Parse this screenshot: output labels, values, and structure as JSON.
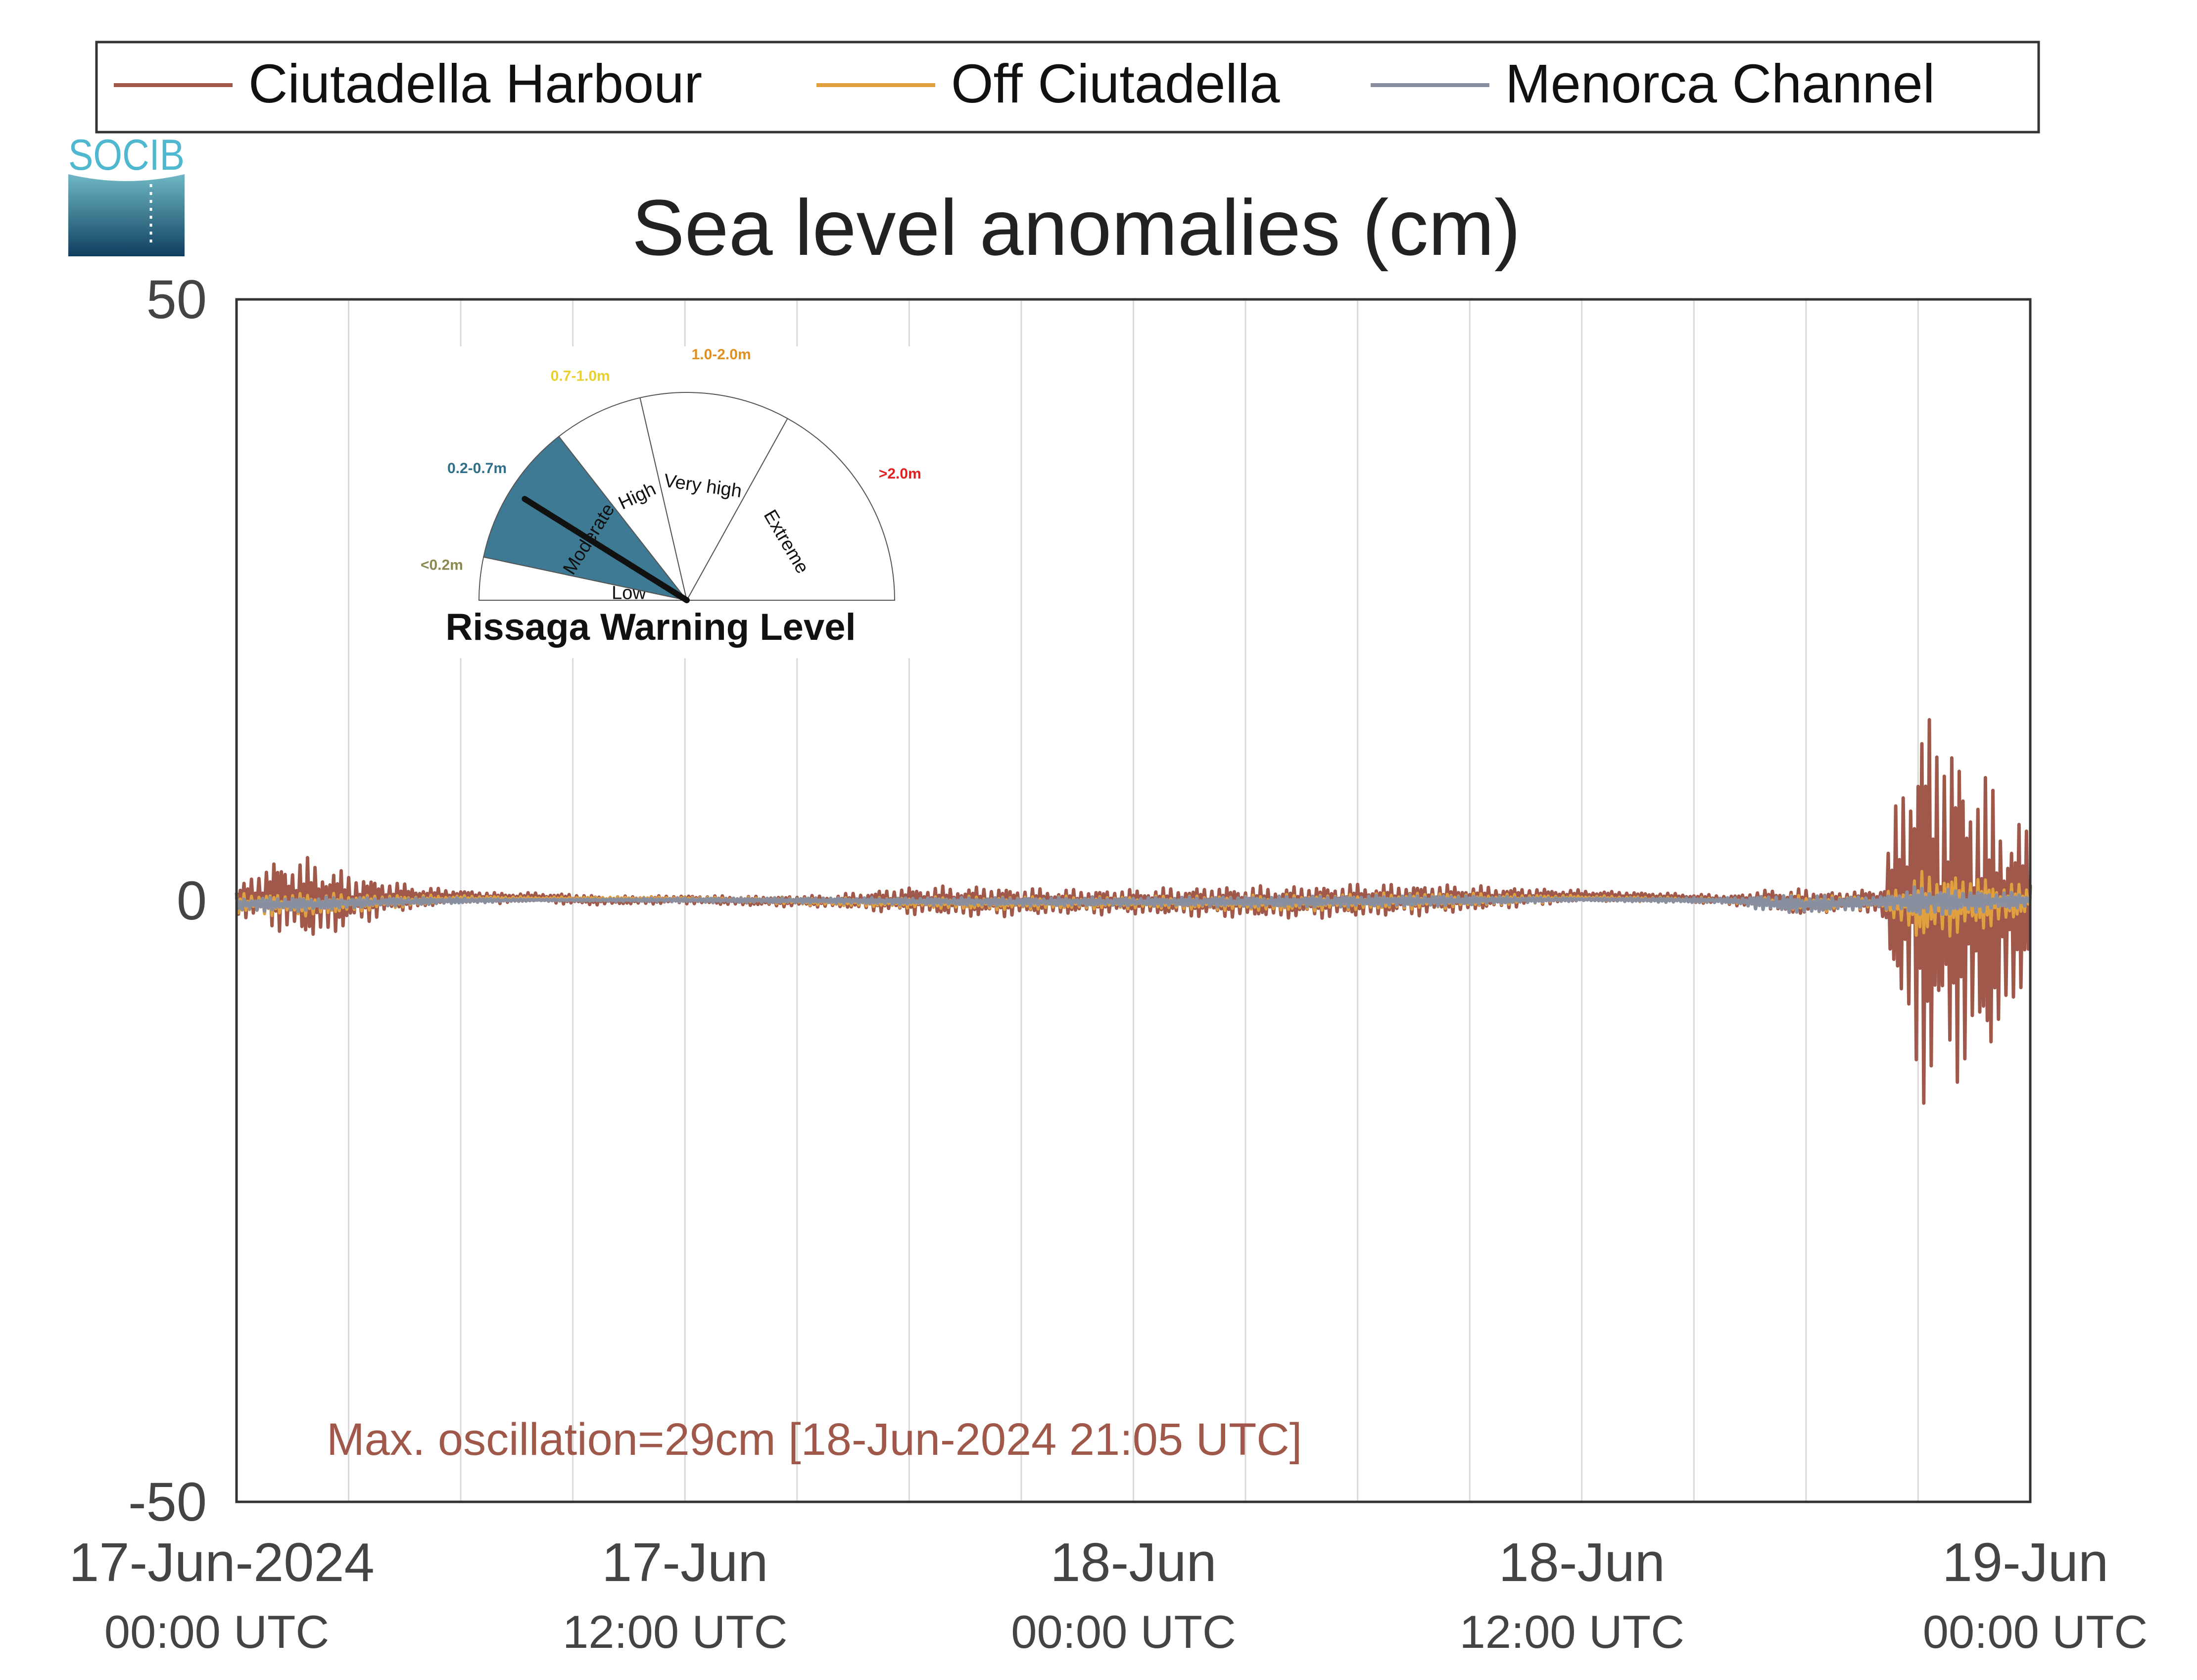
{
  "brand": {
    "logo_text": "SOCIB"
  },
  "legend": {
    "placement": "top",
    "items": [
      {
        "label": "Ciutadella Harbour",
        "color": "#a0584a"
      },
      {
        "label": "Off Ciutadella",
        "color": "#e0a040"
      },
      {
        "label": "Menorca Channel",
        "color": "#8a8fa0"
      }
    ]
  },
  "gauge": {
    "title": "Rissaga Warning Level",
    "needle_value_m": 0.45,
    "sectors": [
      {
        "label": "Low",
        "range": "<0.2m",
        "range_color": "#8a8a50"
      },
      {
        "label": "Moderate",
        "range": "0.2-0.7m",
        "range_color": "#2f6f8a",
        "fill": "#3e7a93"
      },
      {
        "label": "High",
        "range": "0.7-1.0m",
        "range_color": "#e8d030"
      },
      {
        "label": "Very high",
        "range": "1.0-2.0m",
        "range_color": "#e09020"
      },
      {
        "label": "Extreme",
        "range": ">2.0m",
        "range_color": "#e02020"
      }
    ]
  },
  "annotation": {
    "text": "Max. oscillation=29cm [18-Jun-2024 21:05 UTC]",
    "color": "#a0584a"
  },
  "chart_data": {
    "type": "line",
    "title": "Sea level anomalies (cm)",
    "xlabel": "",
    "ylabel": "",
    "xlim_hours": [
      0,
      48
    ],
    "ylim": [
      -50,
      50
    ],
    "y_ticks": [
      -50,
      0,
      50
    ],
    "x_ticks": [
      {
        "hour": 0,
        "label_line1": "17-Jun-2024",
        "label_line2": "00:00 UTC"
      },
      {
        "hour": 12,
        "label_line1": "17-Jun",
        "label_line2": "12:00 UTC"
      },
      {
        "hour": 24,
        "label_line1": "18-Jun",
        "label_line2": "00:00 UTC"
      },
      {
        "hour": 36,
        "label_line1": "18-Jun",
        "label_line2": "12:00 UTC"
      },
      {
        "hour": 48,
        "label_line1": "19-Jun",
        "label_line2": "00:00 UTC"
      }
    ],
    "grid_hours": [
      3,
      6,
      9,
      15,
      18,
      21,
      27,
      30,
      33,
      39,
      42,
      45
    ],
    "grid": true,
    "series": [
      {
        "name": "Ciutadella Harbour",
        "color": "#a0584a",
        "envelope": [
          [
            0,
            -1,
            1
          ],
          [
            1,
            -2,
            3
          ],
          [
            2,
            -3,
            3
          ],
          [
            3,
            -2,
            2
          ],
          [
            4,
            -1,
            1.5
          ],
          [
            5,
            -0.5,
            1
          ],
          [
            6,
            0,
            0.8
          ],
          [
            7,
            -0.2,
            0.6
          ],
          [
            8,
            0,
            0.6
          ],
          [
            9,
            -0.3,
            0.5
          ],
          [
            10,
            -0.3,
            0.3
          ],
          [
            12,
            -0.2,
            0.4
          ],
          [
            14,
            -0.4,
            0.3
          ],
          [
            16,
            -0.5,
            0.4
          ],
          [
            18,
            -1,
            1
          ],
          [
            20,
            -1.2,
            1
          ],
          [
            22,
            -1,
            0.8
          ],
          [
            24,
            -1,
            0.8
          ],
          [
            26,
            -1.2,
            1
          ],
          [
            28,
            -1.3,
            1
          ],
          [
            30,
            -1.2,
            1.2
          ],
          [
            32,
            -1,
            1.2
          ],
          [
            34,
            -0.5,
            1
          ],
          [
            36,
            0,
            0.8
          ],
          [
            38,
            0,
            0.6
          ],
          [
            40,
            -0.3,
            0.4
          ],
          [
            41,
            -0.6,
            0.8
          ],
          [
            42,
            -1.2,
            0.8
          ],
          [
            43,
            -0.6,
            0.6
          ],
          [
            44,
            -1,
            1
          ],
          [
            45,
            -15,
            15
          ],
          [
            46,
            -13,
            12
          ],
          [
            47,
            -12,
            8
          ],
          [
            48,
            -5,
            5
          ]
        ]
      },
      {
        "name": "Off Ciutadella",
        "color": "#e0a040",
        "envelope": [
          [
            0,
            -1,
            0.5
          ],
          [
            2,
            -1.2,
            0.5
          ],
          [
            4,
            -0.6,
            0.4
          ],
          [
            6,
            -0.1,
            0.4
          ],
          [
            8,
            0,
            0.3
          ],
          [
            12,
            0,
            0.3
          ],
          [
            16,
            -0.4,
            0.2
          ],
          [
            20,
            -0.7,
            0.3
          ],
          [
            24,
            -0.6,
            0.3
          ],
          [
            28,
            -0.8,
            0.4
          ],
          [
            32,
            -0.6,
            0.6
          ],
          [
            36,
            0,
            0.4
          ],
          [
            40,
            -0.2,
            0.2
          ],
          [
            42,
            -1,
            0.4
          ],
          [
            44,
            -0.5,
            0.3
          ],
          [
            45,
            -3,
            2
          ],
          [
            46,
            -2.5,
            2
          ],
          [
            47,
            -2,
            1.5
          ],
          [
            48,
            -1,
            1
          ]
        ]
      },
      {
        "name": "Menorca Channel",
        "color": "#8a8fa0",
        "envelope": [
          [
            0,
            -0.8,
            0.2
          ],
          [
            2,
            -0.8,
            0.2
          ],
          [
            4,
            -0.4,
            0.2
          ],
          [
            6,
            -0.2,
            0.2
          ],
          [
            8,
            0,
            0.1
          ],
          [
            12,
            -0.1,
            0.2
          ],
          [
            16,
            -0.2,
            0.2
          ],
          [
            20,
            -0.4,
            0.2
          ],
          [
            24,
            -0.4,
            0.2
          ],
          [
            28,
            -0.5,
            0.3
          ],
          [
            32,
            -0.4,
            0.4
          ],
          [
            36,
            0,
            0.2
          ],
          [
            40,
            -0.2,
            0.2
          ],
          [
            41,
            -0.8,
            0.4
          ],
          [
            42,
            -1,
            0.3
          ],
          [
            44,
            -0.5,
            0.3
          ],
          [
            45,
            -1.2,
            1
          ],
          [
            46,
            -1,
            0.8
          ],
          [
            48,
            -0.5,
            0.5
          ]
        ]
      }
    ]
  }
}
